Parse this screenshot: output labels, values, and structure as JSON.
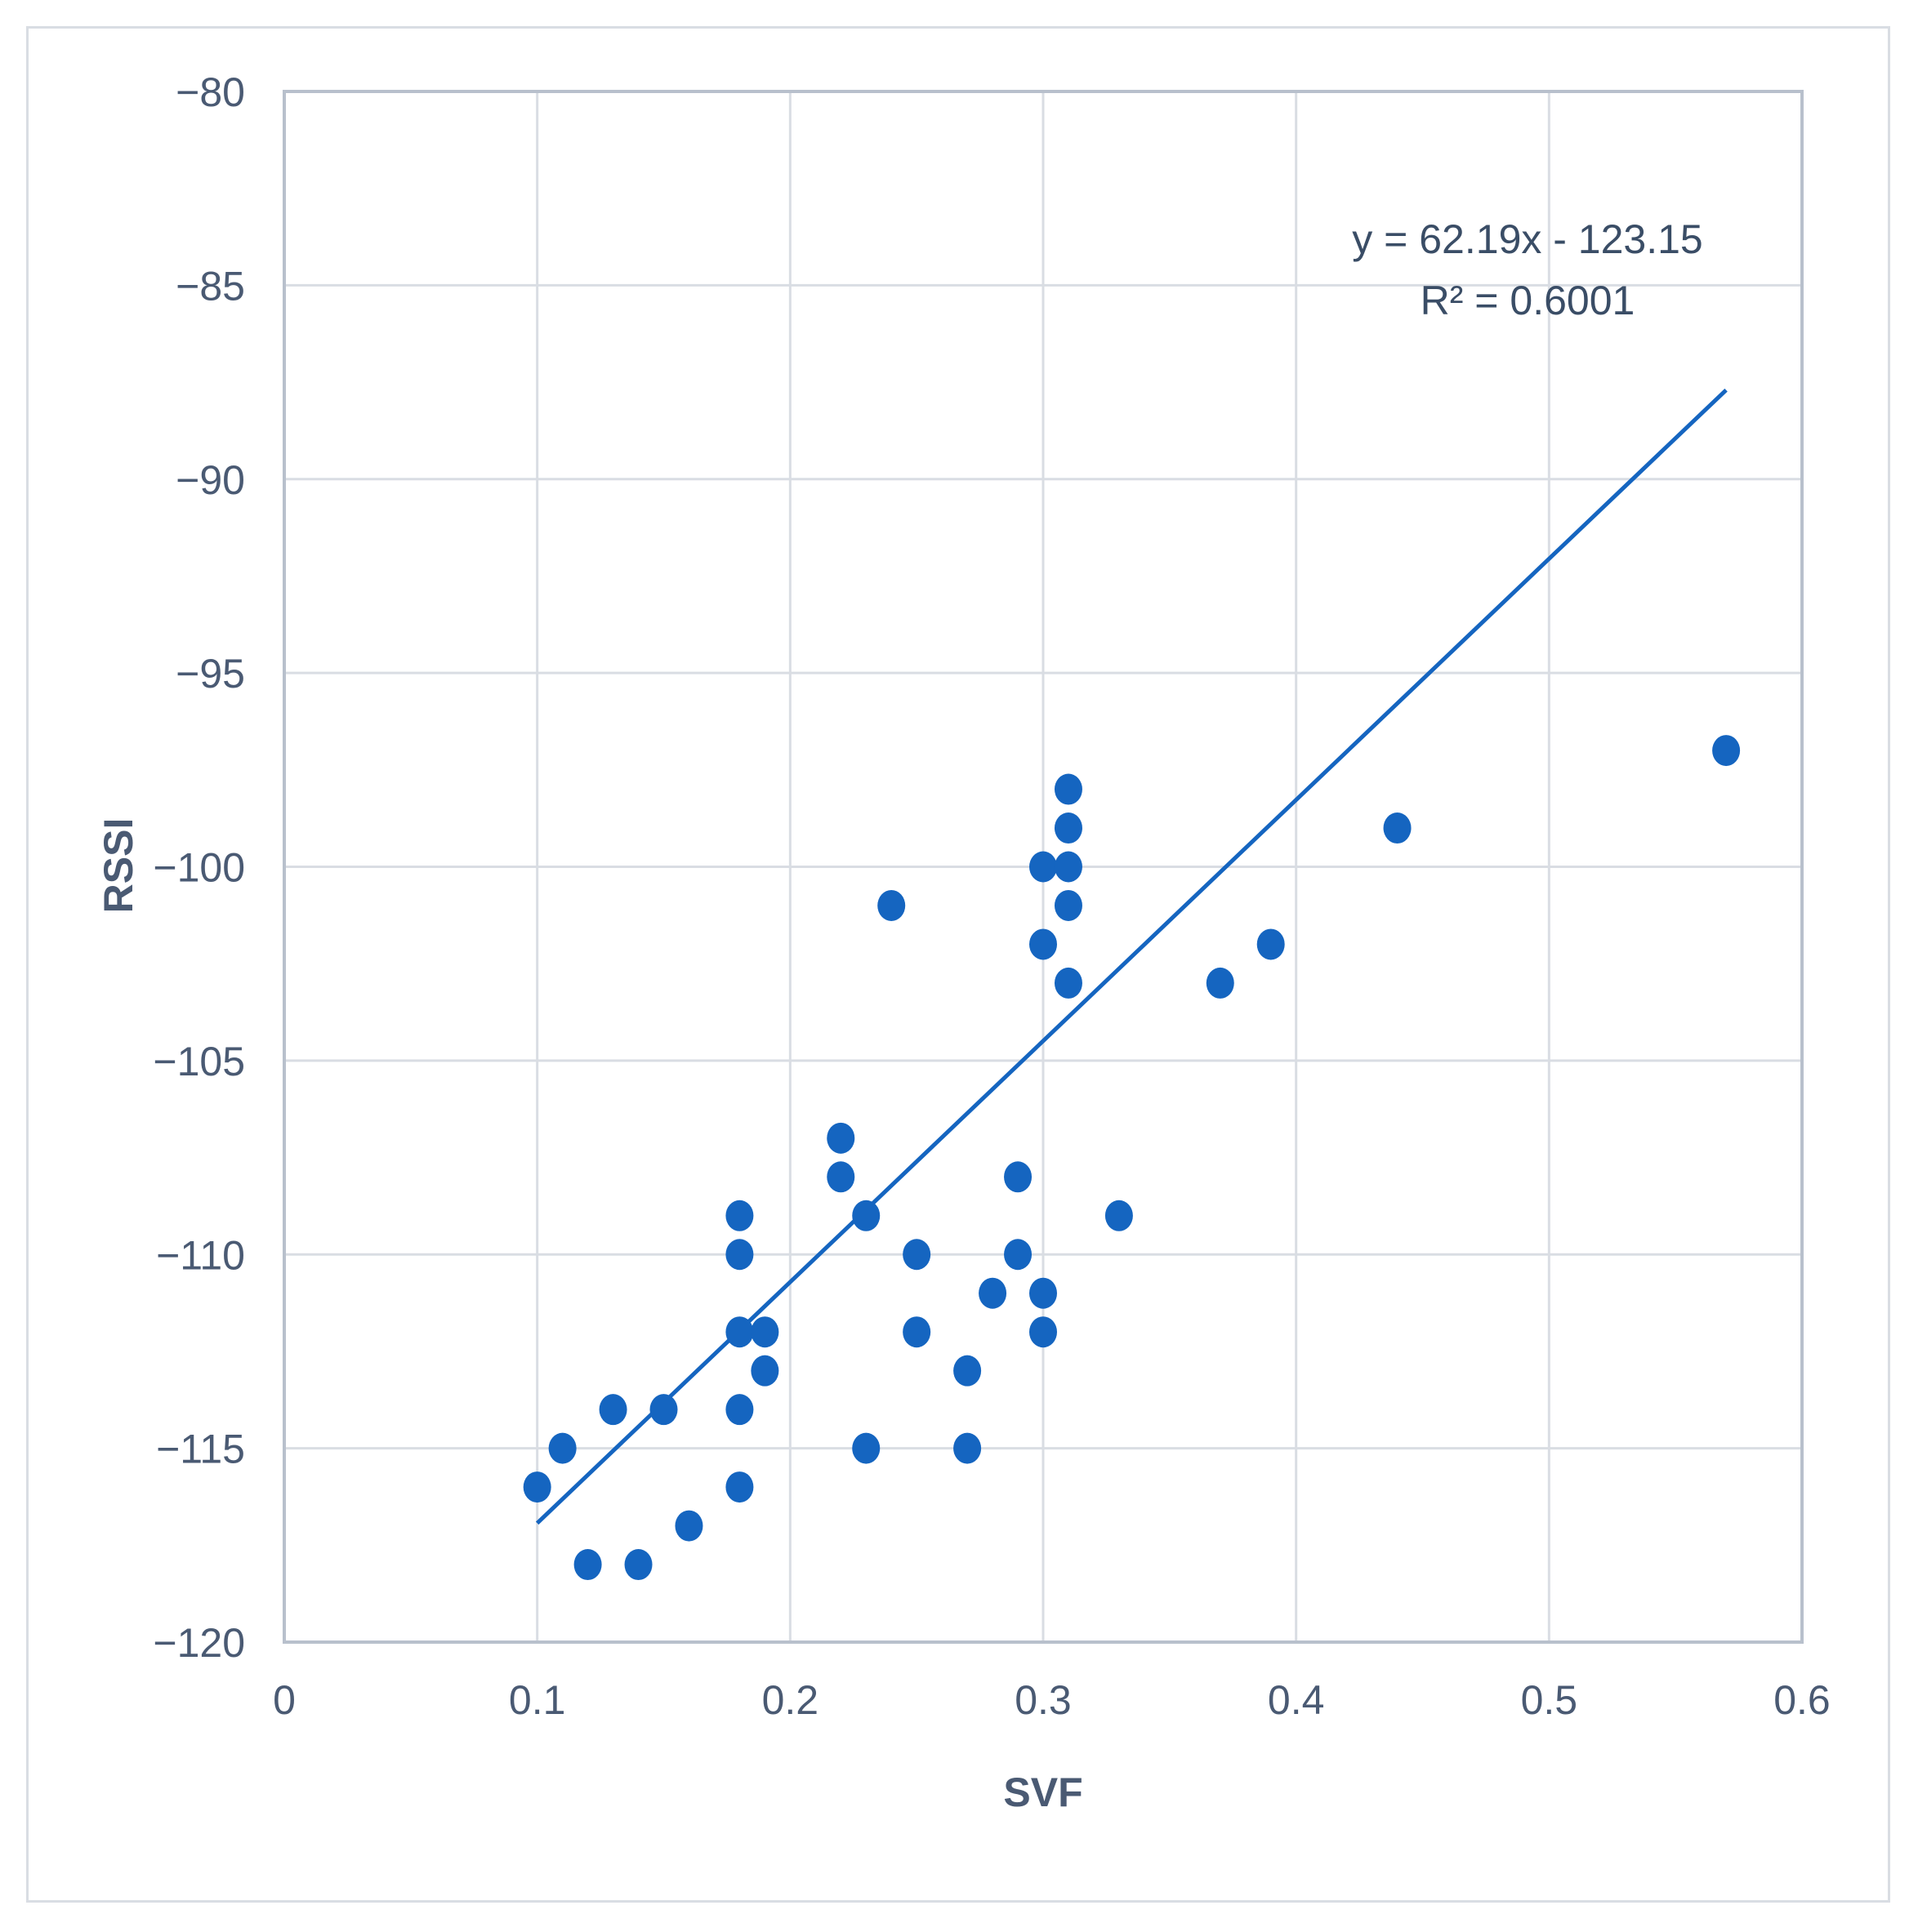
{
  "chart_data": {
    "type": "scatter",
    "title": "",
    "xlabel": "SVF",
    "ylabel": "RSSI",
    "xlim": [
      0,
      0.6
    ],
    "ylim": [
      -120,
      -80
    ],
    "x_ticks": [
      0,
      0.1,
      0.2,
      0.3,
      0.4,
      0.5,
      0.6
    ],
    "x_tick_labels": [
      "0",
      "0.1",
      "0.2",
      "0.3",
      "0.4",
      "0.5",
      "0.6"
    ],
    "y_ticks": [
      -80,
      -85,
      -90,
      -95,
      -100,
      -105,
      -110,
      -115,
      -120
    ],
    "y_tick_labels": [
      "−80",
      "−85",
      "−90",
      "−95",
      "−100",
      "−105",
      "−110",
      "−115",
      "−120"
    ],
    "grid": true,
    "legend": "none",
    "colors": {
      "points": "#1565c0",
      "trendline": "#1565c0",
      "grid": "#d9dde3",
      "plot_border": "#b8c0cc",
      "text": "#4a5a73"
    },
    "points": [
      {
        "x": 0.1,
        "y": -116
      },
      {
        "x": 0.11,
        "y": -115
      },
      {
        "x": 0.12,
        "y": -118
      },
      {
        "x": 0.13,
        "y": -114
      },
      {
        "x": 0.14,
        "y": -118
      },
      {
        "x": 0.15,
        "y": -114
      },
      {
        "x": 0.16,
        "y": -117
      },
      {
        "x": 0.18,
        "y": -109
      },
      {
        "x": 0.18,
        "y": -110
      },
      {
        "x": 0.18,
        "y": -112
      },
      {
        "x": 0.18,
        "y": -114
      },
      {
        "x": 0.18,
        "y": -116
      },
      {
        "x": 0.19,
        "y": -112
      },
      {
        "x": 0.19,
        "y": -113
      },
      {
        "x": 0.22,
        "y": -107
      },
      {
        "x": 0.22,
        "y": -108
      },
      {
        "x": 0.23,
        "y": -109
      },
      {
        "x": 0.23,
        "y": -115
      },
      {
        "x": 0.24,
        "y": -101
      },
      {
        "x": 0.25,
        "y": -110
      },
      {
        "x": 0.25,
        "y": -112
      },
      {
        "x": 0.27,
        "y": -113
      },
      {
        "x": 0.27,
        "y": -115
      },
      {
        "x": 0.28,
        "y": -111
      },
      {
        "x": 0.29,
        "y": -108
      },
      {
        "x": 0.29,
        "y": -110
      },
      {
        "x": 0.3,
        "y": -100
      },
      {
        "x": 0.3,
        "y": -102
      },
      {
        "x": 0.3,
        "y": -111
      },
      {
        "x": 0.3,
        "y": -112
      },
      {
        "x": 0.31,
        "y": -98
      },
      {
        "x": 0.31,
        "y": -99
      },
      {
        "x": 0.31,
        "y": -100
      },
      {
        "x": 0.31,
        "y": -101
      },
      {
        "x": 0.31,
        "y": -103
      },
      {
        "x": 0.33,
        "y": -109
      },
      {
        "x": 0.37,
        "y": -103
      },
      {
        "x": 0.39,
        "y": -102
      },
      {
        "x": 0.44,
        "y": -99
      },
      {
        "x": 0.57,
        "y": -97
      }
    ],
    "trendline": {
      "type": "linear",
      "slope": 62.19,
      "intercept": -123.15,
      "x_range": [
        0.1,
        0.57
      ],
      "equation_label": "y = 62.19x - 123.15",
      "r2_label": "R² = 0.6001"
    }
  }
}
